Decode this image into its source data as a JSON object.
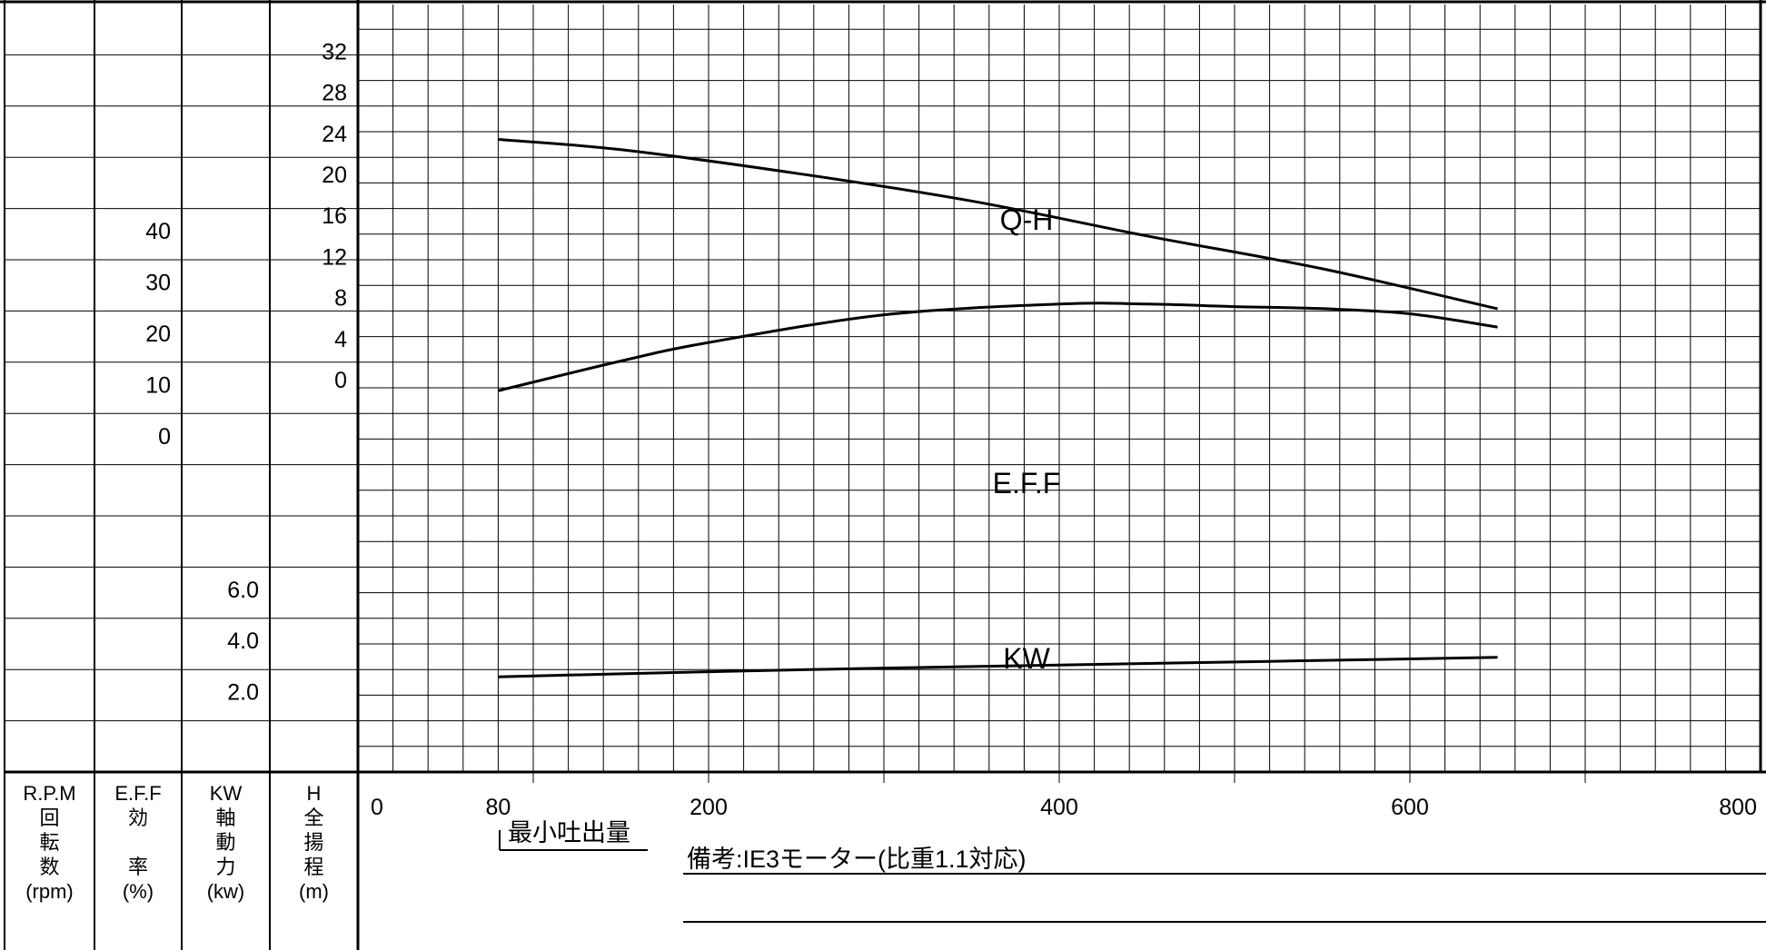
{
  "chart_data": {
    "type": "line",
    "x": {
      "min": 0,
      "max": 800,
      "tick_labels": [
        "0",
        "80",
        "200",
        "400",
        "600",
        "800"
      ],
      "tick_values": [
        0,
        80,
        200,
        400,
        600,
        800
      ]
    },
    "axis_columns": [
      {
        "key": "rpm",
        "header": [
          "R.P.M",
          "回",
          "転",
          "数",
          "(rpm)"
        ],
        "ticks": []
      },
      {
        "key": "eff",
        "header": [
          "E.F.F",
          "効",
          "",
          "率",
          "(%)"
        ],
        "ticks": [
          {
            "label": "40",
            "value": 40
          },
          {
            "label": "30",
            "value": 30
          },
          {
            "label": "20",
            "value": 20
          },
          {
            "label": "10",
            "value": 10
          },
          {
            "label": "0",
            "value": 0
          }
        ]
      },
      {
        "key": "kw",
        "header": [
          "KW",
          "軸",
          "動",
          "力",
          "(kw)"
        ],
        "ticks": [
          {
            "label": "6.0",
            "value": 6.0
          },
          {
            "label": "4.0",
            "value": 4.0
          },
          {
            "label": "2.0",
            "value": 2.0
          }
        ]
      },
      {
        "key": "h",
        "header": [
          "H",
          "全",
          "揚",
          "程",
          "(m)"
        ],
        "ticks": [
          {
            "label": "32",
            "value": 32
          },
          {
            "label": "28",
            "value": 28
          },
          {
            "label": "24",
            "value": 24
          },
          {
            "label": "20",
            "value": 20
          },
          {
            "label": "16",
            "value": 16
          },
          {
            "label": "12",
            "value": 12
          },
          {
            "label": "8",
            "value": 8
          },
          {
            "label": "4",
            "value": 4
          },
          {
            "label": "0",
            "value": 0
          }
        ]
      }
    ],
    "series": [
      {
        "name": "Q-H",
        "axis": "h",
        "points": [
          [
            80,
            24.2
          ],
          [
            150,
            23.2
          ],
          [
            250,
            20.9
          ],
          [
            350,
            18.2
          ],
          [
            450,
            14.8
          ],
          [
            550,
            11.6
          ],
          [
            650,
            7.7
          ]
        ]
      },
      {
        "name": "E.F.F",
        "axis": "eff",
        "points": [
          [
            80,
            10.4
          ],
          [
            150,
            16.2
          ],
          [
            200,
            19.8
          ],
          [
            300,
            25.2
          ],
          [
            400,
            27.3
          ],
          [
            450,
            27.3
          ],
          [
            500,
            26.8
          ],
          [
            550,
            26.4
          ],
          [
            600,
            25.4
          ],
          [
            650,
            22.8
          ]
        ]
      },
      {
        "name": "KW",
        "axis": "kw",
        "points": [
          [
            80,
            2.9
          ],
          [
            200,
            3.1
          ],
          [
            300,
            3.24
          ],
          [
            400,
            3.36
          ],
          [
            500,
            3.48
          ],
          [
            600,
            3.6
          ],
          [
            650,
            3.66
          ]
        ]
      }
    ],
    "grid": true
  },
  "annotations": {
    "min_flow_label": "最小吐出量",
    "remarks": "備考:IE3モーター(比重1.1対応)"
  }
}
